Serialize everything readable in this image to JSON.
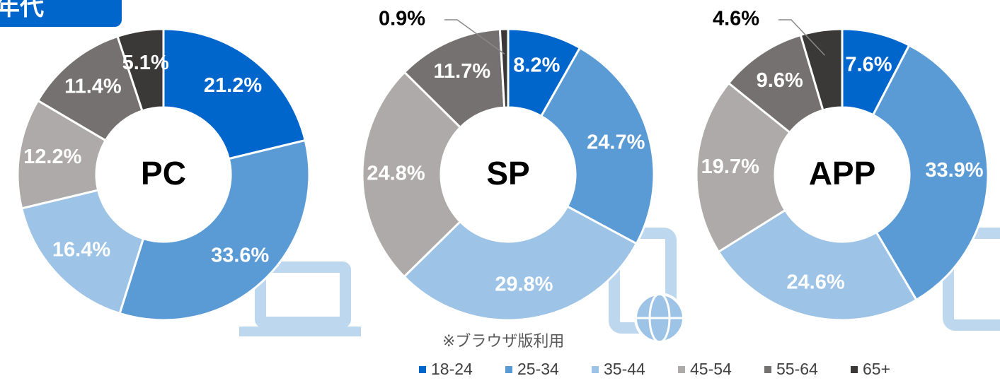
{
  "header": {
    "title": "年代"
  },
  "note": "※ブラウザ版利用",
  "legend": {
    "categories": [
      "18-24",
      "25-34",
      "35-44",
      "45-54",
      "55-64",
      "65+"
    ],
    "colors": [
      "#0066cc",
      "#5b9bd5",
      "#9dc3e6",
      "#aeaaaa",
      "#767171",
      "#3b3838"
    ]
  },
  "chart_data": [
    {
      "type": "pie",
      "title": "PC",
      "values": [
        21.2,
        33.6,
        16.4,
        12.2,
        11.4,
        5.1
      ],
      "value_labels": [
        "21.2%",
        "33.6%",
        "16.4%",
        "12.2%",
        "11.4%",
        "5.1%"
      ]
    },
    {
      "type": "pie",
      "title": "SP",
      "values": [
        8.2,
        24.7,
        29.8,
        24.8,
        11.7,
        0.9
      ],
      "value_labels": [
        "8.2%",
        "24.7%",
        "29.8%",
        "24.8%",
        "11.7%",
        "0.9%"
      ]
    },
    {
      "type": "pie",
      "title": "APP",
      "values": [
        7.6,
        33.9,
        24.6,
        19.7,
        9.6,
        4.6
      ],
      "value_labels": [
        "7.6%",
        "33.9%",
        "24.6%",
        "19.7%",
        "9.6%",
        "4.6%"
      ]
    }
  ]
}
